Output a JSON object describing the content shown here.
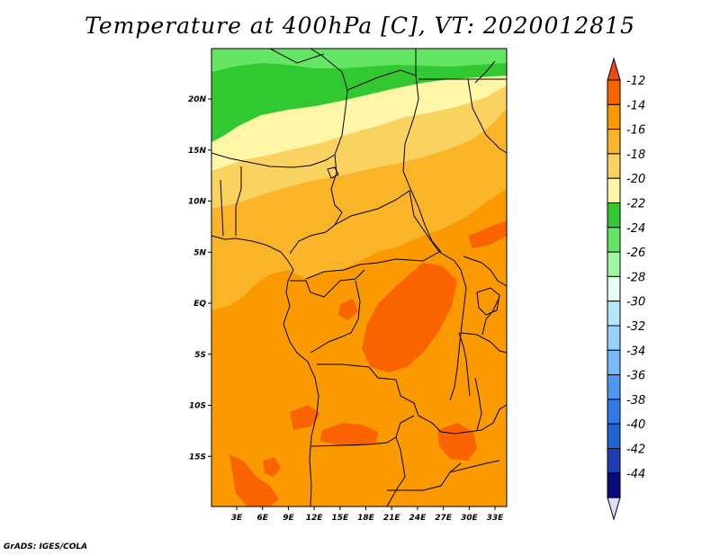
{
  "title": "Temperature at 400hPa [C], VT: 2020012815",
  "credit": "GrADS: IGES/COLA",
  "map": {
    "lat_ticks": [
      "20N",
      "15N",
      "10N",
      "5N",
      "EQ",
      "5S",
      "10S",
      "15S"
    ],
    "lon_ticks": [
      "3E",
      "6E",
      "9E",
      "12E",
      "15E",
      "18E",
      "21E",
      "24E",
      "27E",
      "30E",
      "33E"
    ]
  },
  "colorbar": {
    "labels": [
      "-12",
      "-14",
      "-16",
      "-18",
      "-20",
      "-22",
      "-24",
      "-26",
      "-28",
      "-30",
      "-32",
      "-34",
      "-36",
      "-38",
      "-40",
      "-42",
      "-44"
    ],
    "top_arrow_color": "#f04a14",
    "bottom_arrow_color": "#dcdcff",
    "colors": [
      "#fa6400",
      "#fa9a00",
      "#fab428",
      "#fad260",
      "#fff6a8",
      "#32c832",
      "#64e664",
      "#a0f5a0",
      "#e6fff0",
      "#b4e6fa",
      "#96d2fa",
      "#78b9fa",
      "#5096f0",
      "#3278e6",
      "#1e64d2",
      "#1e3cb4",
      "#0a0a78"
    ]
  },
  "palette": {
    "orange_dark": "#fa6400",
    "orange": "#fa9a00",
    "orange_light": "#fab428",
    "yellow": "#fad260",
    "pale_yellow": "#fff6a8",
    "green": "#32c832",
    "light_green": "#64e664"
  }
}
